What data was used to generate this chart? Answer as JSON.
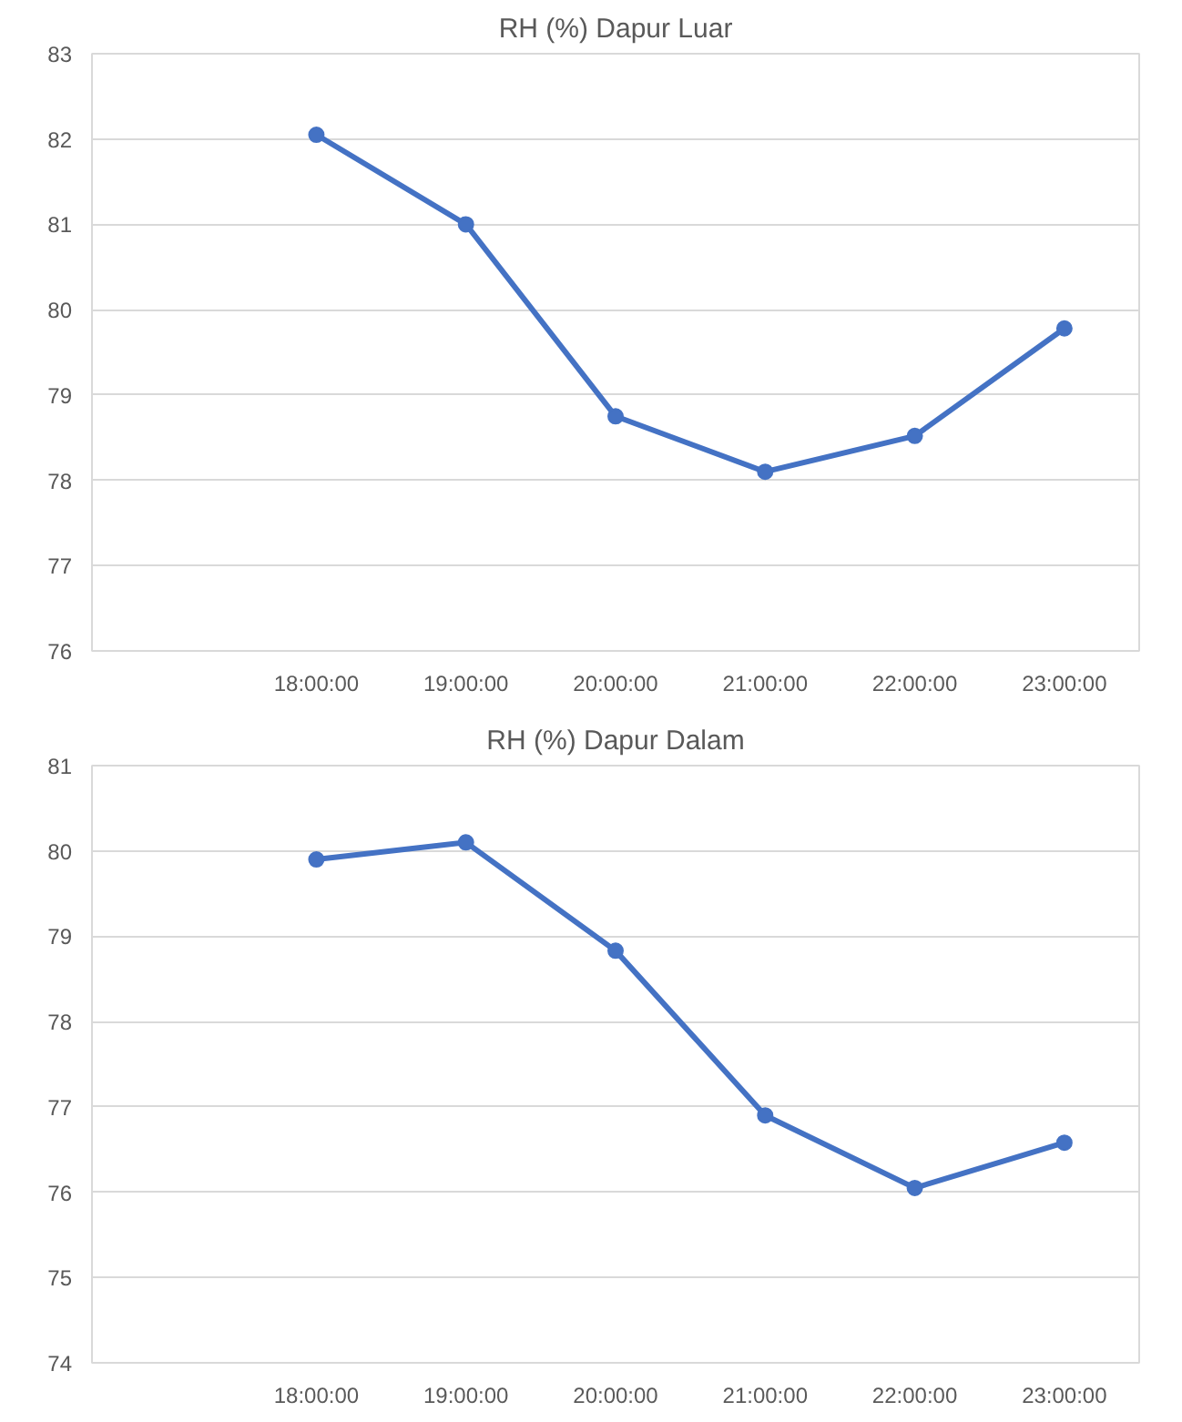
{
  "chart_data": [
    {
      "type": "line",
      "title": "RH (%) Dapur Luar",
      "categories": [
        null,
        "18:00:00",
        "19:00:00",
        "20:00:00",
        "21:00:00",
        "22:00:00",
        "23:00:00"
      ],
      "series": [
        {
          "color": "#4472c4",
          "values": [
            null,
            82.05,
            81.0,
            78.75,
            78.1,
            78.52,
            79.78
          ]
        }
      ],
      "ylim": [
        76,
        83
      ],
      "yticks": [
        76,
        77,
        78,
        79,
        80,
        81,
        82,
        83
      ],
      "grid": "y",
      "marker": "circle",
      "line_style": "solid"
    },
    {
      "type": "line",
      "title": "RH (%) Dapur Dalam",
      "categories": [
        null,
        "18:00:00",
        "19:00:00",
        "20:00:00",
        "21:00:00",
        "22:00:00",
        "23:00:00"
      ],
      "series": [
        {
          "color": "#4472c4",
          "values": [
            null,
            79.9,
            80.1,
            78.83,
            76.9,
            76.05,
            76.58
          ]
        }
      ],
      "ylim": [
        74,
        81
      ],
      "yticks": [
        74,
        75,
        76,
        77,
        78,
        79,
        80,
        81
      ],
      "grid": "y",
      "marker": "circle",
      "line_style": "solid"
    }
  ]
}
